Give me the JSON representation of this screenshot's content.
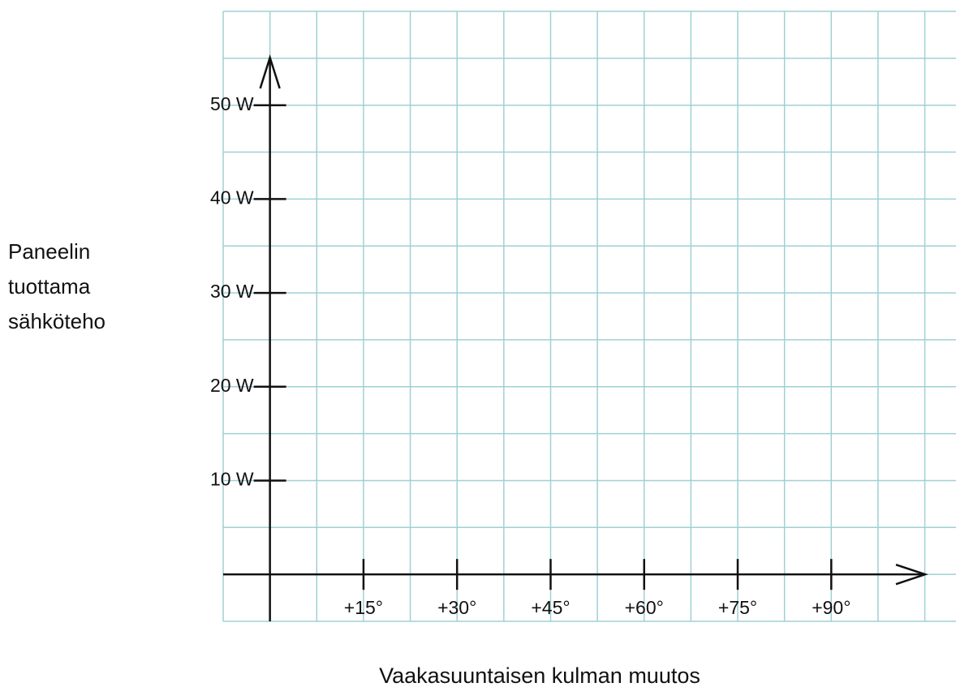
{
  "chart_data": {
    "type": "line",
    "xlabel": "Vaakasuuntaisen kulman muutos",
    "ylabel": "Paneelin tuottama sähköteho",
    "xlim": [
      -7.5,
      110
    ],
    "ylim": [
      -5,
      60
    ],
    "xticks": [
      {
        "value": 15,
        "label": "+15°"
      },
      {
        "value": 30,
        "label": "+30°"
      },
      {
        "value": 45,
        "label": "+45°"
      },
      {
        "value": 60,
        "label": "+60°"
      },
      {
        "value": 75,
        "label": "+75°"
      },
      {
        "value": 90,
        "label": "+90°"
      }
    ],
    "yticks": [
      {
        "value": 10,
        "label": "10 W"
      },
      {
        "value": 20,
        "label": "20 W"
      },
      {
        "value": 30,
        "label": "30 W"
      },
      {
        "value": 40,
        "label": "40 W"
      },
      {
        "value": 50,
        "label": "50 W"
      }
    ],
    "grid": true,
    "grid_color": "#9fd0d6",
    "axis_color": "#111111",
    "series": []
  }
}
